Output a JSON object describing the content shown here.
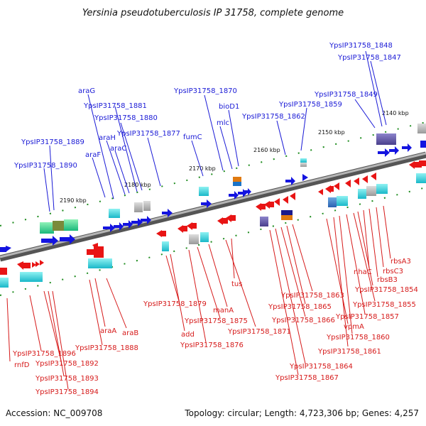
{
  "title": "Yersinia pseudotuberculosis IP 31758, complete genome",
  "footer": {
    "accession": "Accession: NC_009708",
    "summary": "Topology: circular; Length: 4,723,306 bp; Genes: 4,257"
  },
  "colors": {
    "forward_label": "#1a1ad6",
    "reverse_label": "#d61a1a",
    "backbone": "#7f7f7f",
    "tick_mark": "#1e8c1e"
  },
  "ticks": [
    "2140 kbp",
    "2150 kbp",
    "2160 kbp",
    "2170 kbp",
    "2180 kbp",
    "2190 kbp"
  ],
  "forward_labels": [
    "YpsIP31758_1848",
    "YpsIP31758_1847",
    "YpsIP31758_1849",
    "YpsIP31758_1859",
    "YpsIP31758_1862",
    "bioD1",
    "mlc",
    "YpsIP31758_1870",
    "fumC",
    "YpsIP31758_1877",
    "YpsIP31758_1880",
    "YpsIP31758_1881",
    "araG",
    "araH",
    "araC",
    "araF",
    "YpsIP31758_1889",
    "YpsIP31758_1890"
  ],
  "reverse_labels": [
    "rbsA3",
    "rbsC3",
    "rbsB3",
    "nhaC",
    "YpsIP31758_1854",
    "YpsIP31758_1855",
    "YpsIP31758_1857",
    "YpsIP31758_1860",
    "YpsIP31758_1861",
    "vpmA",
    "YpsIP31758_1863",
    "YpsIP31758_1865",
    "YpsIP31758_1866",
    "YpsIP31758_1864",
    "YpsIP31758_1867",
    "tus",
    "YpsIP31758_1871",
    "manA",
    "YpsIP31758_1875",
    "YpsIP31758_1876",
    "add",
    "YpsIP31758_1879",
    "araB",
    "araA",
    "YpsIP31758_1888",
    "YpsIP31758_1896",
    "rnfD",
    "YpsIP31758_1892",
    "YpsIP31758_1893",
    "YpsIP31758_1894"
  ]
}
